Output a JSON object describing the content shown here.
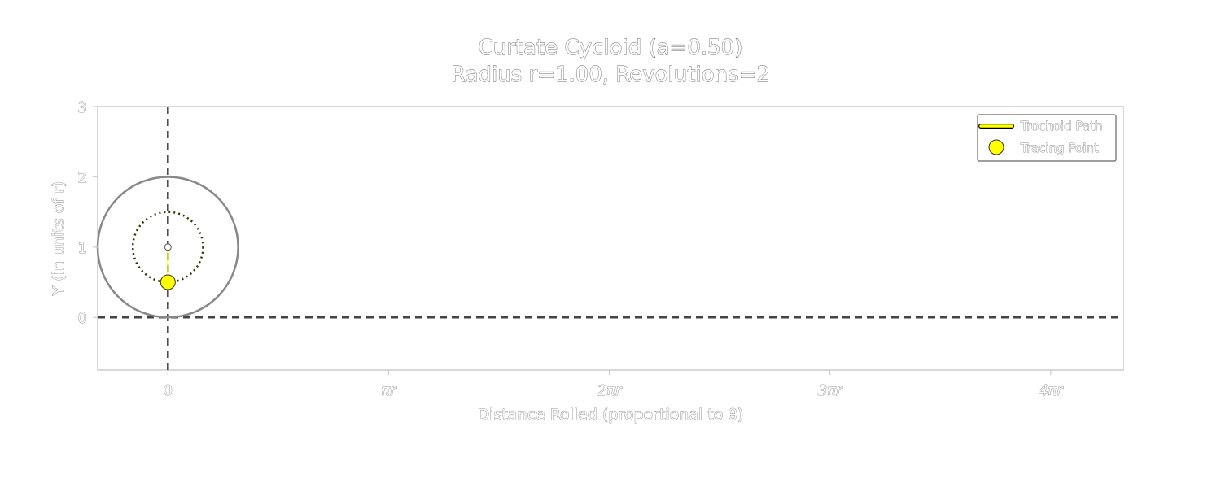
{
  "chart_data": {
    "type": "line",
    "title_lines": [
      "Curtate Cycloid (a=0.50)",
      "Radius r=1.00, Revolutions=2"
    ],
    "xlabel": "Distance Rolled (proportional to θ)",
    "ylabel": "Y (in units of r)",
    "xlim": [
      -1.0,
      13.6
    ],
    "ylim": [
      -0.75,
      3.0
    ],
    "x_ticks": [
      {
        "value": 0,
        "label": "0"
      },
      {
        "value": 3.14159,
        "label": "πr"
      },
      {
        "value": 6.28319,
        "label": "2πr"
      },
      {
        "value": 9.42478,
        "label": "3πr"
      },
      {
        "value": 12.56637,
        "label": "4πr"
      }
    ],
    "y_ticks": [
      {
        "value": 0,
        "label": "0"
      },
      {
        "value": 1,
        "label": "1"
      },
      {
        "value": 2,
        "label": "2"
      },
      {
        "value": 3,
        "label": "3"
      }
    ],
    "guides": {
      "baseline_y": 0,
      "vline_x": 0
    },
    "rolling_circle": {
      "center": [
        0,
        1
      ],
      "radius": 1.0
    },
    "trace_circle": {
      "center": [
        0,
        1
      ],
      "radius": 0.5
    },
    "series": [
      {
        "name": "Trochoid Path",
        "x": [
          0,
          0
        ],
        "y": [
          0.5,
          0.5
        ],
        "color": "#ffff00"
      },
      {
        "name": "Tracing Point",
        "x": [
          0
        ],
        "y": [
          0.5
        ],
        "color": "#ffff00"
      }
    ],
    "radius_segment": {
      "from": [
        0,
        1
      ],
      "to": [
        0,
        0.5
      ],
      "color": "#ffff00"
    },
    "legend": {
      "position": "top-right",
      "entries": [
        "Trochoid Path",
        "Tracing Point"
      ]
    },
    "grid": false,
    "colors": {
      "accent": "#ffff00",
      "frame": "#cccccc",
      "guide": "#444444",
      "circle": "#888888",
      "trace_circle": "#333300"
    }
  }
}
